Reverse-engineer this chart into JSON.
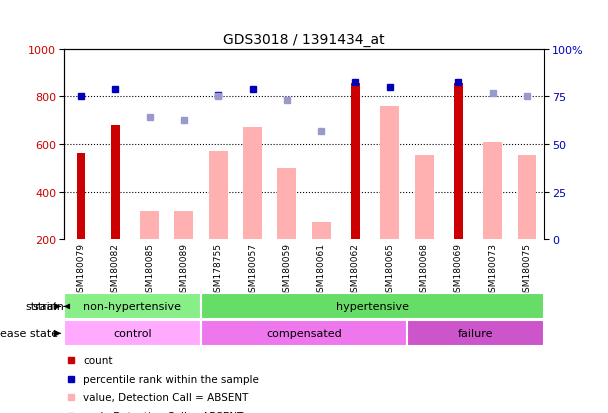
{
  "title": "GDS3018 / 1391434_at",
  "samples": [
    "GSM180079",
    "GSM180082",
    "GSM180085",
    "GSM180089",
    "GSM178755",
    "GSM180057",
    "GSM180059",
    "GSM180061",
    "GSM180062",
    "GSM180065",
    "GSM180068",
    "GSM180069",
    "GSM180073",
    "GSM180075"
  ],
  "count_values": [
    560,
    680,
    null,
    null,
    null,
    null,
    null,
    null,
    855,
    null,
    null,
    855,
    null,
    null
  ],
  "percentile_values": [
    800,
    830,
    null,
    null,
    805,
    830,
    null,
    null,
    860,
    840,
    null,
    858,
    null,
    null
  ],
  "value_absent": [
    null,
    null,
    320,
    320,
    570,
    670,
    500,
    270,
    null,
    760,
    555,
    null,
    610,
    555
  ],
  "rank_absent": [
    null,
    null,
    715,
    700,
    800,
    null,
    785,
    655,
    null,
    null,
    null,
    null,
    815,
    800
  ],
  "strain_groups": [
    {
      "label": "non-hypertensive",
      "start": 0,
      "end": 4
    },
    {
      "label": "hypertensive",
      "start": 4,
      "end": 14
    }
  ],
  "strain_colors": [
    "#88ee88",
    "#66dd66"
  ],
  "disease_groups": [
    {
      "label": "control",
      "start": 0,
      "end": 4
    },
    {
      "label": "compensated",
      "start": 4,
      "end": 10
    },
    {
      "label": "failure",
      "start": 10,
      "end": 14
    }
  ],
  "disease_colors": [
    "#ffaaff",
    "#ee77ee",
    "#cc55cc"
  ],
  "ylim_left": [
    200,
    1000
  ],
  "ylim_right": [
    0,
    100
  ],
  "left_ticks": [
    200,
    400,
    600,
    800,
    1000
  ],
  "right_ticks": [
    0,
    25,
    50,
    75,
    100
  ],
  "grid_values": [
    400,
    600,
    800
  ],
  "bar_color_count": "#cc0000",
  "bar_color_absent": "#ffb0b0",
  "dot_color_percentile": "#0000bb",
  "dot_color_rank_absent": "#9999cc",
  "left_label_color": "#cc0000",
  "right_label_color": "#0000bb",
  "xticklabel_bg": "#cccccc",
  "figwidth": 6.08,
  "figheight": 4.14,
  "dpi": 100
}
